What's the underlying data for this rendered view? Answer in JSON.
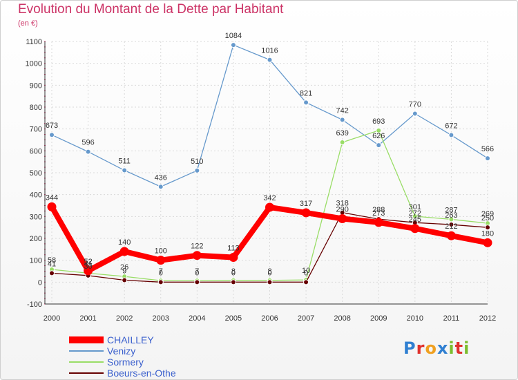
{
  "header": {
    "title": "Evolution du Montant de la Dette par Habitant",
    "subtitle": "(en €)"
  },
  "colors": {
    "title": "#cc3366",
    "legend_text": "#3a5fcd",
    "grid": "#d9d9d9",
    "axis": "#333333"
  },
  "logo": {
    "text": "Proxiti",
    "icon": "proxiti-logo-icon",
    "letter_colors": [
      "#2f7fd1",
      "#e0302c",
      "#f0a020",
      "#2f7fd1",
      "#7bbd2d",
      "#e0302c",
      "#7bbd2d"
    ]
  },
  "chart_data": {
    "type": "line",
    "title": "Evolution du Montant de la Dette par Habitant",
    "subtitle": "(en €)",
    "xlabel": "",
    "ylabel": "",
    "ylim": [
      -100,
      1100
    ],
    "yticks": [
      -100,
      0,
      100,
      200,
      300,
      400,
      500,
      600,
      700,
      800,
      900,
      1000,
      1100
    ],
    "grid": true,
    "legend_position": "bottom-left",
    "categories": [
      "2000",
      "2001",
      "2002",
      "2003",
      "2004",
      "2005",
      "2006",
      "2007",
      "2008",
      "2009",
      "2010",
      "2011",
      "2012"
    ],
    "series": [
      {
        "name": "CHAILLEY",
        "color": "#ff0000",
        "values": [
          344,
          52,
          140,
          100,
          122,
          113,
          342,
          317,
          290,
          273,
          245,
          212,
          180
        ],
        "labels": [
          "344",
          "52",
          "140",
          "100",
          "122",
          "113",
          "342",
          "317",
          "290",
          "273",
          "245",
          "212",
          "180"
        ]
      },
      {
        "name": "Venizy",
        "color": "#6699cc",
        "values": [
          673,
          596,
          511,
          436,
          510,
          1084,
          1016,
          821,
          742,
          626,
          770,
          672,
          566
        ],
        "labels": [
          "673",
          "596",
          "511",
          "436",
          "510",
          "1084",
          "1016",
          "821",
          "742",
          "626",
          "770",
          "672",
          "566"
        ]
      },
      {
        "name": "Sormery",
        "color": "#99dd66",
        "values": [
          58,
          41,
          26,
          7,
          7,
          8,
          8,
          10,
          639,
          693,
          301,
          287,
          269
        ],
        "labels": [
          "58",
          "41",
          "26",
          "7",
          "7",
          "8",
          "8",
          "10",
          "639",
          "693",
          "301",
          "287",
          "269"
        ]
      },
      {
        "name": "Boeurs-en-Othe",
        "color": "#660000",
        "values": [
          41,
          30,
          9,
          0,
          0,
          0,
          0,
          0,
          318,
          288,
          272,
          263,
          250
        ],
        "labels": [
          "41",
          "30",
          "9",
          "0",
          "0",
          "0",
          "0",
          "0",
          "318",
          "288",
          "272",
          "263",
          "250"
        ]
      }
    ]
  }
}
